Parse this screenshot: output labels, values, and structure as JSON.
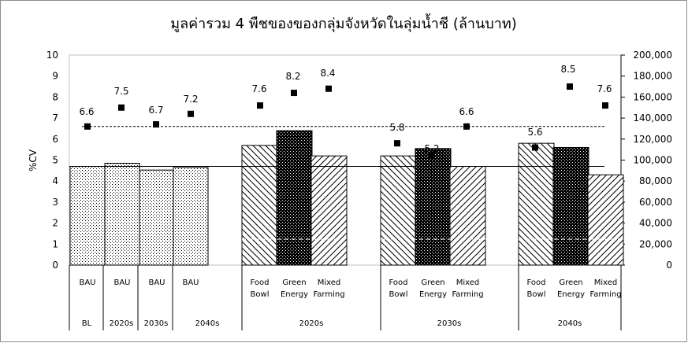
{
  "chart_data": {
    "type": "bar",
    "title": "มูลค่ารวม 4 พืชของของกลุ่มจังหวัดในลุ่มน้ำชี (ล้านบาท)",
    "ylabel": "%CV",
    "ylim": [
      0,
      10
    ],
    "y2lim": [
      0,
      200000
    ],
    "y_ticks": [
      "0",
      "1",
      "2",
      "3",
      "4",
      "5",
      "6",
      "7",
      "8",
      "9",
      "10"
    ],
    "y2_ticks": [
      "0",
      "20,000",
      "40,000",
      "60,000",
      "80,000",
      "100,000",
      "120,000",
      "140,000",
      "160,000",
      "180,000",
      "200,000"
    ],
    "grid": false,
    "legend": "none",
    "bars": [
      {
        "scenario": [
          "BAU"
        ],
        "value": 94000,
        "pattern": "dots"
      },
      {
        "scenario": [
          "BAU"
        ],
        "value": 97000,
        "pattern": "dots"
      },
      {
        "scenario": [
          "BAU"
        ],
        "value": 90500,
        "pattern": "dots"
      },
      {
        "scenario": [
          "BAU"
        ],
        "value": 93000,
        "pattern": "dots"
      },
      {
        "scenario": [
          "Food",
          "Bowl"
        ],
        "value": 114000,
        "pattern": "hatch-back"
      },
      {
        "scenario": [
          "Green",
          "Energy"
        ],
        "value": 128000,
        "pattern": "checker"
      },
      {
        "scenario": [
          "Mixed",
          "Farming"
        ],
        "value": 104000,
        "pattern": "hatch-fwd"
      },
      {
        "scenario": [
          "Food",
          "Bowl"
        ],
        "value": 104000,
        "pattern": "hatch-back"
      },
      {
        "scenario": [
          "Green",
          "Energy"
        ],
        "value": 111000,
        "pattern": "checker"
      },
      {
        "scenario": [
          "Mixed",
          "Farming"
        ],
        "value": 94000,
        "pattern": "hatch-fwd"
      },
      {
        "scenario": [
          "Food",
          "Bowl"
        ],
        "value": 116000,
        "pattern": "hatch-back"
      },
      {
        "scenario": [
          "Green",
          "Energy"
        ],
        "value": 112000,
        "pattern": "checker"
      },
      {
        "scenario": [
          "Mixed",
          "Farming"
        ],
        "value": 86000,
        "pattern": "hatch-fwd"
      }
    ],
    "cv_points": [
      {
        "cv": 6.6,
        "label": "6.6"
      },
      {
        "cv": 7.5,
        "label": "7.5"
      },
      {
        "cv": 6.7,
        "label": "6.7"
      },
      {
        "cv": 7.2,
        "label": "7.2"
      },
      {
        "cv": 7.6,
        "label": "7.6"
      },
      {
        "cv": 8.2,
        "label": "8.2"
      },
      {
        "cv": 8.4,
        "label": "8.4"
      },
      {
        "cv": 5.8,
        "label": "5.8"
      },
      {
        "cv": 5.2,
        "label": "5.2"
      },
      {
        "cv": 6.6,
        "label": "6.6"
      },
      {
        "cv": 5.6,
        "label": "5.6"
      },
      {
        "cv": 8.5,
        "label": "8.5"
      },
      {
        "cv": 7.6,
        "label": "7.6"
      }
    ],
    "periods": [
      "BL",
      "2020s",
      "2030s",
      "2040s",
      "2020s",
      "2030s",
      "2040s"
    ],
    "reference_lines": {
      "baseline_value": 94000,
      "baseline_cv": 6.6
    }
  },
  "colors": {
    "bar_outline": "#000000",
    "pattern_ink": "#000000",
    "bar_fill": "#ffffff",
    "marker": "#000000",
    "frame": "#8c8c8c",
    "plot_border": "#bfbfbf"
  }
}
